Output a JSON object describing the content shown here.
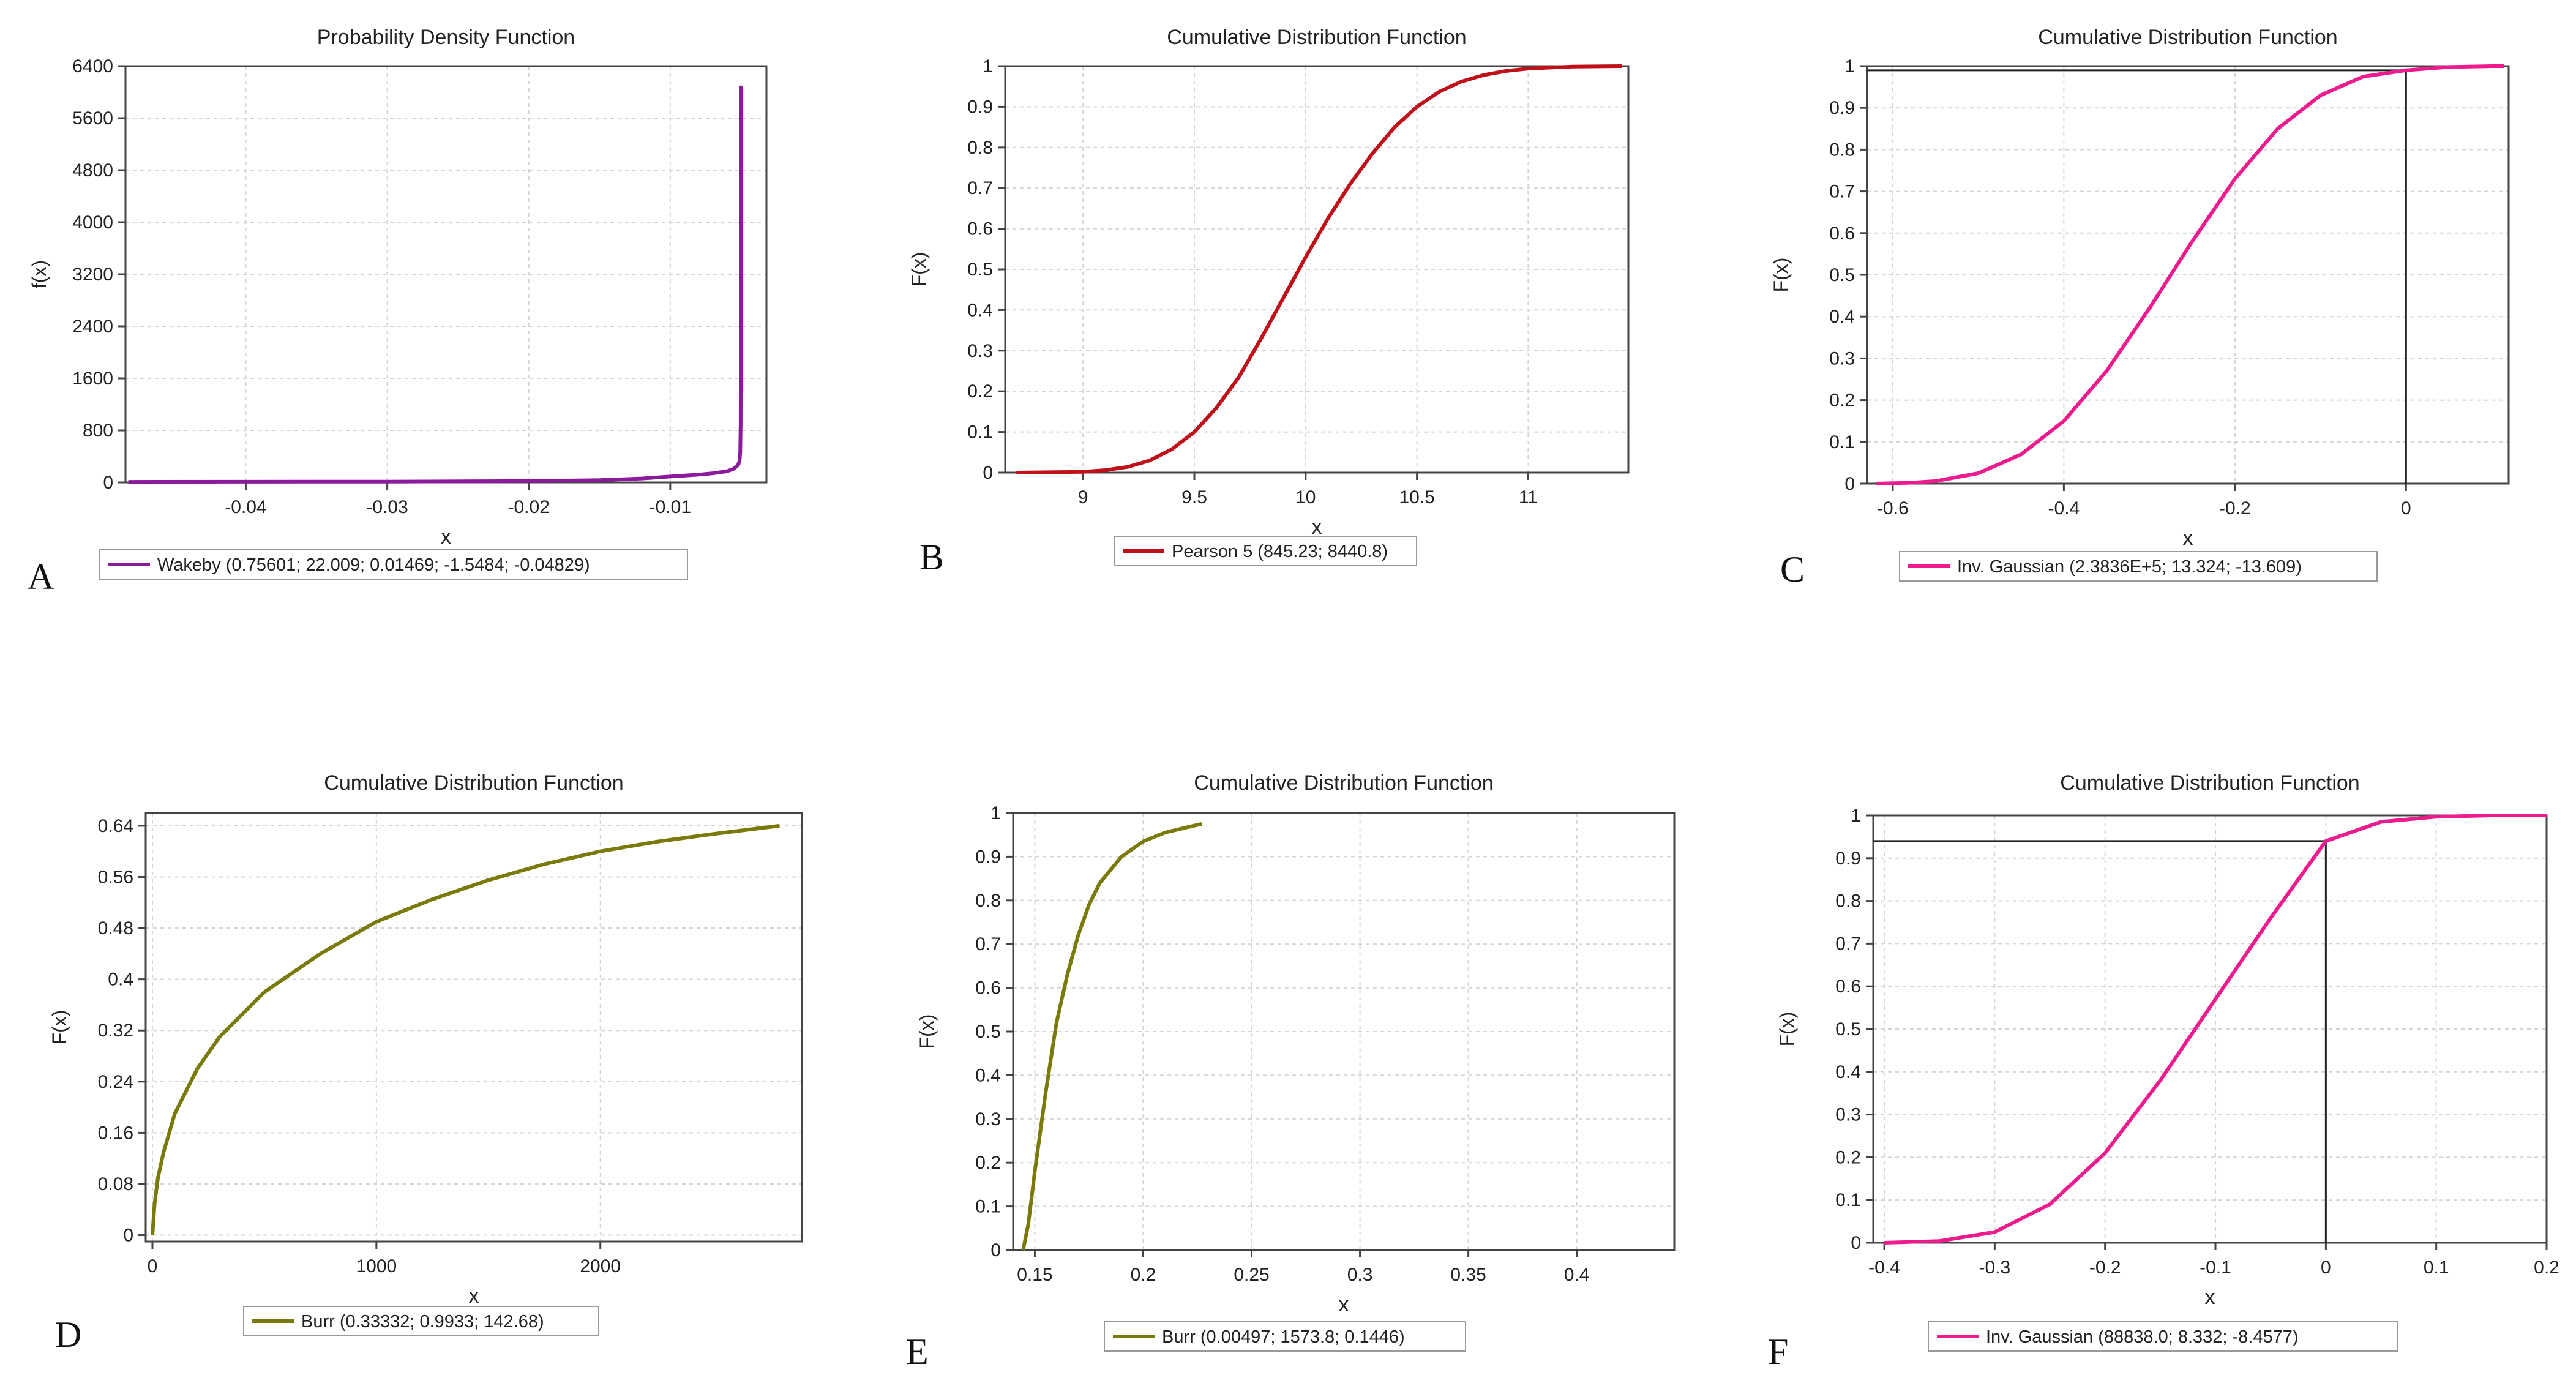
{
  "figure": {
    "background": "#ffffff",
    "grid_color": "#d4d4d4",
    "axis_color": "#444444",
    "refline_color": "#222222"
  },
  "chart_data": [
    {
      "id": "A",
      "panel_label": "A",
      "type": "line",
      "title": "Probability Density Function",
      "xlabel": "x",
      "ylabel": "f(x)",
      "xlim": [
        -0.0485,
        -0.0032
      ],
      "ylim": [
        0,
        6400
      ],
      "xticks": [
        -0.04,
        -0.03,
        -0.02,
        -0.01
      ],
      "xtick_labels": [
        "-0.04",
        "-0.03",
        "-0.02",
        "-0.01"
      ],
      "yticks": [
        0,
        800,
        1600,
        2400,
        3200,
        4000,
        4800,
        5600,
        6400
      ],
      "ytick_labels": [
        "0",
        "800",
        "1600",
        "2400",
        "3200",
        "4000",
        "4800",
        "5600",
        "6400"
      ],
      "series": [
        {
          "name": "Wakeby",
          "params": "(0.75601; 22.009; 0.01469; -1.5484; -0.04829)",
          "color": "#8b1a9c",
          "x": [
            -0.0483,
            -0.04,
            -0.03,
            -0.02,
            -0.015,
            -0.012,
            -0.01,
            -0.008,
            -0.007,
            -0.006,
            -0.0055,
            -0.0052,
            -0.0051,
            -0.00505,
            -0.00502,
            -0.00501,
            -0.005
          ],
          "y": [
            8,
            10,
            12,
            20,
            35,
            60,
            90,
            120,
            140,
            170,
            210,
            270,
            330,
            460,
            900,
            2500,
            6100
          ]
        }
      ],
      "reference_lines": []
    },
    {
      "id": "B",
      "panel_label": "B",
      "type": "line",
      "title": "Cumulative Distribution Function",
      "xlabel": "x",
      "ylabel": "F(x)",
      "xlim": [
        8.65,
        11.45
      ],
      "ylim": [
        0,
        1
      ],
      "xticks": [
        9,
        9.5,
        10,
        10.5,
        11
      ],
      "xtick_labels": [
        "9",
        "9.5",
        "10",
        "10.5",
        "11"
      ],
      "yticks": [
        0,
        0.1,
        0.2,
        0.3,
        0.4,
        0.5,
        0.6,
        0.7,
        0.8,
        0.9,
        1
      ],
      "ytick_labels": [
        "0",
        "0.1",
        "0.2",
        "0.3",
        "0.4",
        "0.5",
        "0.6",
        "0.7",
        "0.8",
        "0.9",
        "1"
      ],
      "series": [
        {
          "name": "Pearson 5",
          "params": "(845.23; 8440.8)",
          "color": "#c0101a",
          "x": [
            8.7,
            9.0,
            9.1,
            9.2,
            9.3,
            9.4,
            9.5,
            9.6,
            9.7,
            9.8,
            9.9,
            10.0,
            10.1,
            10.2,
            10.3,
            10.4,
            10.5,
            10.6,
            10.7,
            10.8,
            10.9,
            11.0,
            11.2,
            11.42
          ],
          "y": [
            0.0,
            0.002,
            0.006,
            0.014,
            0.03,
            0.058,
            0.1,
            0.16,
            0.235,
            0.33,
            0.43,
            0.53,
            0.625,
            0.71,
            0.785,
            0.85,
            0.9,
            0.937,
            0.962,
            0.978,
            0.988,
            0.994,
            0.999,
            1.0
          ]
        }
      ],
      "reference_lines": []
    },
    {
      "id": "C",
      "panel_label": "C",
      "type": "line",
      "title": "Cumulative Distribution Function",
      "xlabel": "x",
      "ylabel": "F(x)",
      "xlim": [
        -0.63,
        0.12
      ],
      "ylim": [
        0,
        1
      ],
      "xticks": [
        -0.6,
        -0.4,
        -0.2,
        0
      ],
      "xtick_labels": [
        "-0.6",
        "-0.4",
        "-0.2",
        "0"
      ],
      "yticks": [
        0,
        0.1,
        0.2,
        0.3,
        0.4,
        0.5,
        0.6,
        0.7,
        0.8,
        0.9,
        1
      ],
      "ytick_labels": [
        "0",
        "0.1",
        "0.2",
        "0.3",
        "0.4",
        "0.5",
        "0.6",
        "0.7",
        "0.8",
        "0.9",
        "1"
      ],
      "series": [
        {
          "name": "Inv. Gaussian",
          "params": "(2.3836E+5; 13.324; -13.609)",
          "color": "#ee1b8f",
          "x": [
            -0.62,
            -0.58,
            -0.55,
            -0.5,
            -0.45,
            -0.4,
            -0.35,
            -0.3,
            -0.25,
            -0.2,
            -0.15,
            -0.1,
            -0.05,
            0.0,
            0.05,
            0.1,
            0.115
          ],
          "y": [
            0.0,
            0.002,
            0.006,
            0.025,
            0.07,
            0.15,
            0.27,
            0.42,
            0.58,
            0.73,
            0.85,
            0.93,
            0.975,
            0.99,
            0.998,
            1.0,
            1.0
          ]
        }
      ],
      "reference_lines": [
        {
          "x": 0,
          "y": 0.99
        }
      ]
    },
    {
      "id": "D",
      "panel_label": "D",
      "type": "line",
      "title": "Cumulative Distribution Function",
      "xlabel": "x",
      "ylabel": "F(x)",
      "xlim": [
        -30,
        2900
      ],
      "ylim": [
        -0.01,
        0.66
      ],
      "xticks": [
        0,
        1000,
        2000
      ],
      "xtick_labels": [
        "0",
        "1000",
        "2000"
      ],
      "yticks": [
        0,
        0.08,
        0.16,
        0.24,
        0.32,
        0.4,
        0.48,
        0.56,
        0.64
      ],
      "ytick_labels": [
        "0",
        "0.08",
        "0.16",
        "0.24",
        "0.32",
        "0.4",
        "0.48",
        "0.56",
        "0.64"
      ],
      "series": [
        {
          "name": "Burr",
          "params": "(0.33332; 0.9933; 142.68)",
          "color": "#7a7a0a",
          "x": [
            0,
            10,
            25,
            50,
            100,
            200,
            300,
            500,
            750,
            1000,
            1250,
            1500,
            1750,
            2000,
            2250,
            2500,
            2800
          ],
          "y": [
            0.0,
            0.05,
            0.09,
            0.13,
            0.19,
            0.26,
            0.31,
            0.38,
            0.44,
            0.49,
            0.525,
            0.555,
            0.58,
            0.6,
            0.615,
            0.627,
            0.64
          ]
        }
      ],
      "reference_lines": []
    },
    {
      "id": "E",
      "panel_label": "E",
      "type": "line",
      "title": "Cumulative Distribution Function",
      "xlabel": "x",
      "ylabel": "F(x)",
      "xlim": [
        0.14,
        0.445
      ],
      "ylim": [
        0,
        1
      ],
      "xticks": [
        0.15,
        0.2,
        0.25,
        0.3,
        0.35,
        0.4
      ],
      "xtick_labels": [
        "0.15",
        "0.2",
        "0.25",
        "0.3",
        "0.35",
        "0.4"
      ],
      "yticks": [
        0,
        0.1,
        0.2,
        0.3,
        0.4,
        0.5,
        0.6,
        0.7,
        0.8,
        0.9,
        1
      ],
      "ytick_labels": [
        "0",
        "0.1",
        "0.2",
        "0.3",
        "0.4",
        "0.5",
        "0.6",
        "0.7",
        "0.8",
        "0.9",
        "1"
      ],
      "series": [
        {
          "name": "Burr",
          "params": "(0.00497; 1573.8; 0.1446)",
          "color": "#7a7a0a",
          "x": [
            0.1446,
            0.147,
            0.15,
            0.155,
            0.16,
            0.165,
            0.17,
            0.175,
            0.18,
            0.19,
            0.2,
            0.21,
            0.22,
            0.227
          ],
          "y": [
            0.0,
            0.06,
            0.18,
            0.36,
            0.52,
            0.63,
            0.72,
            0.79,
            0.84,
            0.9,
            0.935,
            0.955,
            0.967,
            0.975
          ]
        }
      ],
      "reference_lines": []
    },
    {
      "id": "F",
      "panel_label": "F",
      "type": "line",
      "title": "Cumulative Distribution Function",
      "xlabel": "x",
      "ylabel": "F(x)",
      "xlim": [
        -0.41,
        0.2
      ],
      "ylim": [
        0,
        1
      ],
      "xticks": [
        -0.4,
        -0.3,
        -0.2,
        -0.1,
        0,
        0.1,
        0.2
      ],
      "xtick_labels": [
        "-0.4",
        "-0.3",
        "-0.2",
        "-0.1",
        "0",
        "0.1",
        "0.2"
      ],
      "yticks": [
        0,
        0.1,
        0.2,
        0.3,
        0.4,
        0.5,
        0.6,
        0.7,
        0.8,
        0.9,
        1
      ],
      "ytick_labels": [
        "0",
        "0.1",
        "0.2",
        "0.3",
        "0.4",
        "0.5",
        "0.6",
        "0.7",
        "0.8",
        "0.9",
        "1"
      ],
      "series": [
        {
          "name": "Inv. Gaussian",
          "params": "(88838.0; 8.332; -8.4577)",
          "color": "#ee1b8f",
          "x": [
            -0.4,
            -0.35,
            -0.3,
            -0.25,
            -0.2,
            -0.15,
            -0.1,
            -0.05,
            0.0,
            0.05,
            0.1,
            0.15,
            0.2
          ],
          "y": [
            0.0,
            0.004,
            0.025,
            0.09,
            0.21,
            0.38,
            0.57,
            0.76,
            0.94,
            0.985,
            0.997,
            1.0,
            1.0
          ]
        }
      ],
      "reference_lines": [
        {
          "x": 0,
          "y": 0.94
        }
      ]
    }
  ]
}
